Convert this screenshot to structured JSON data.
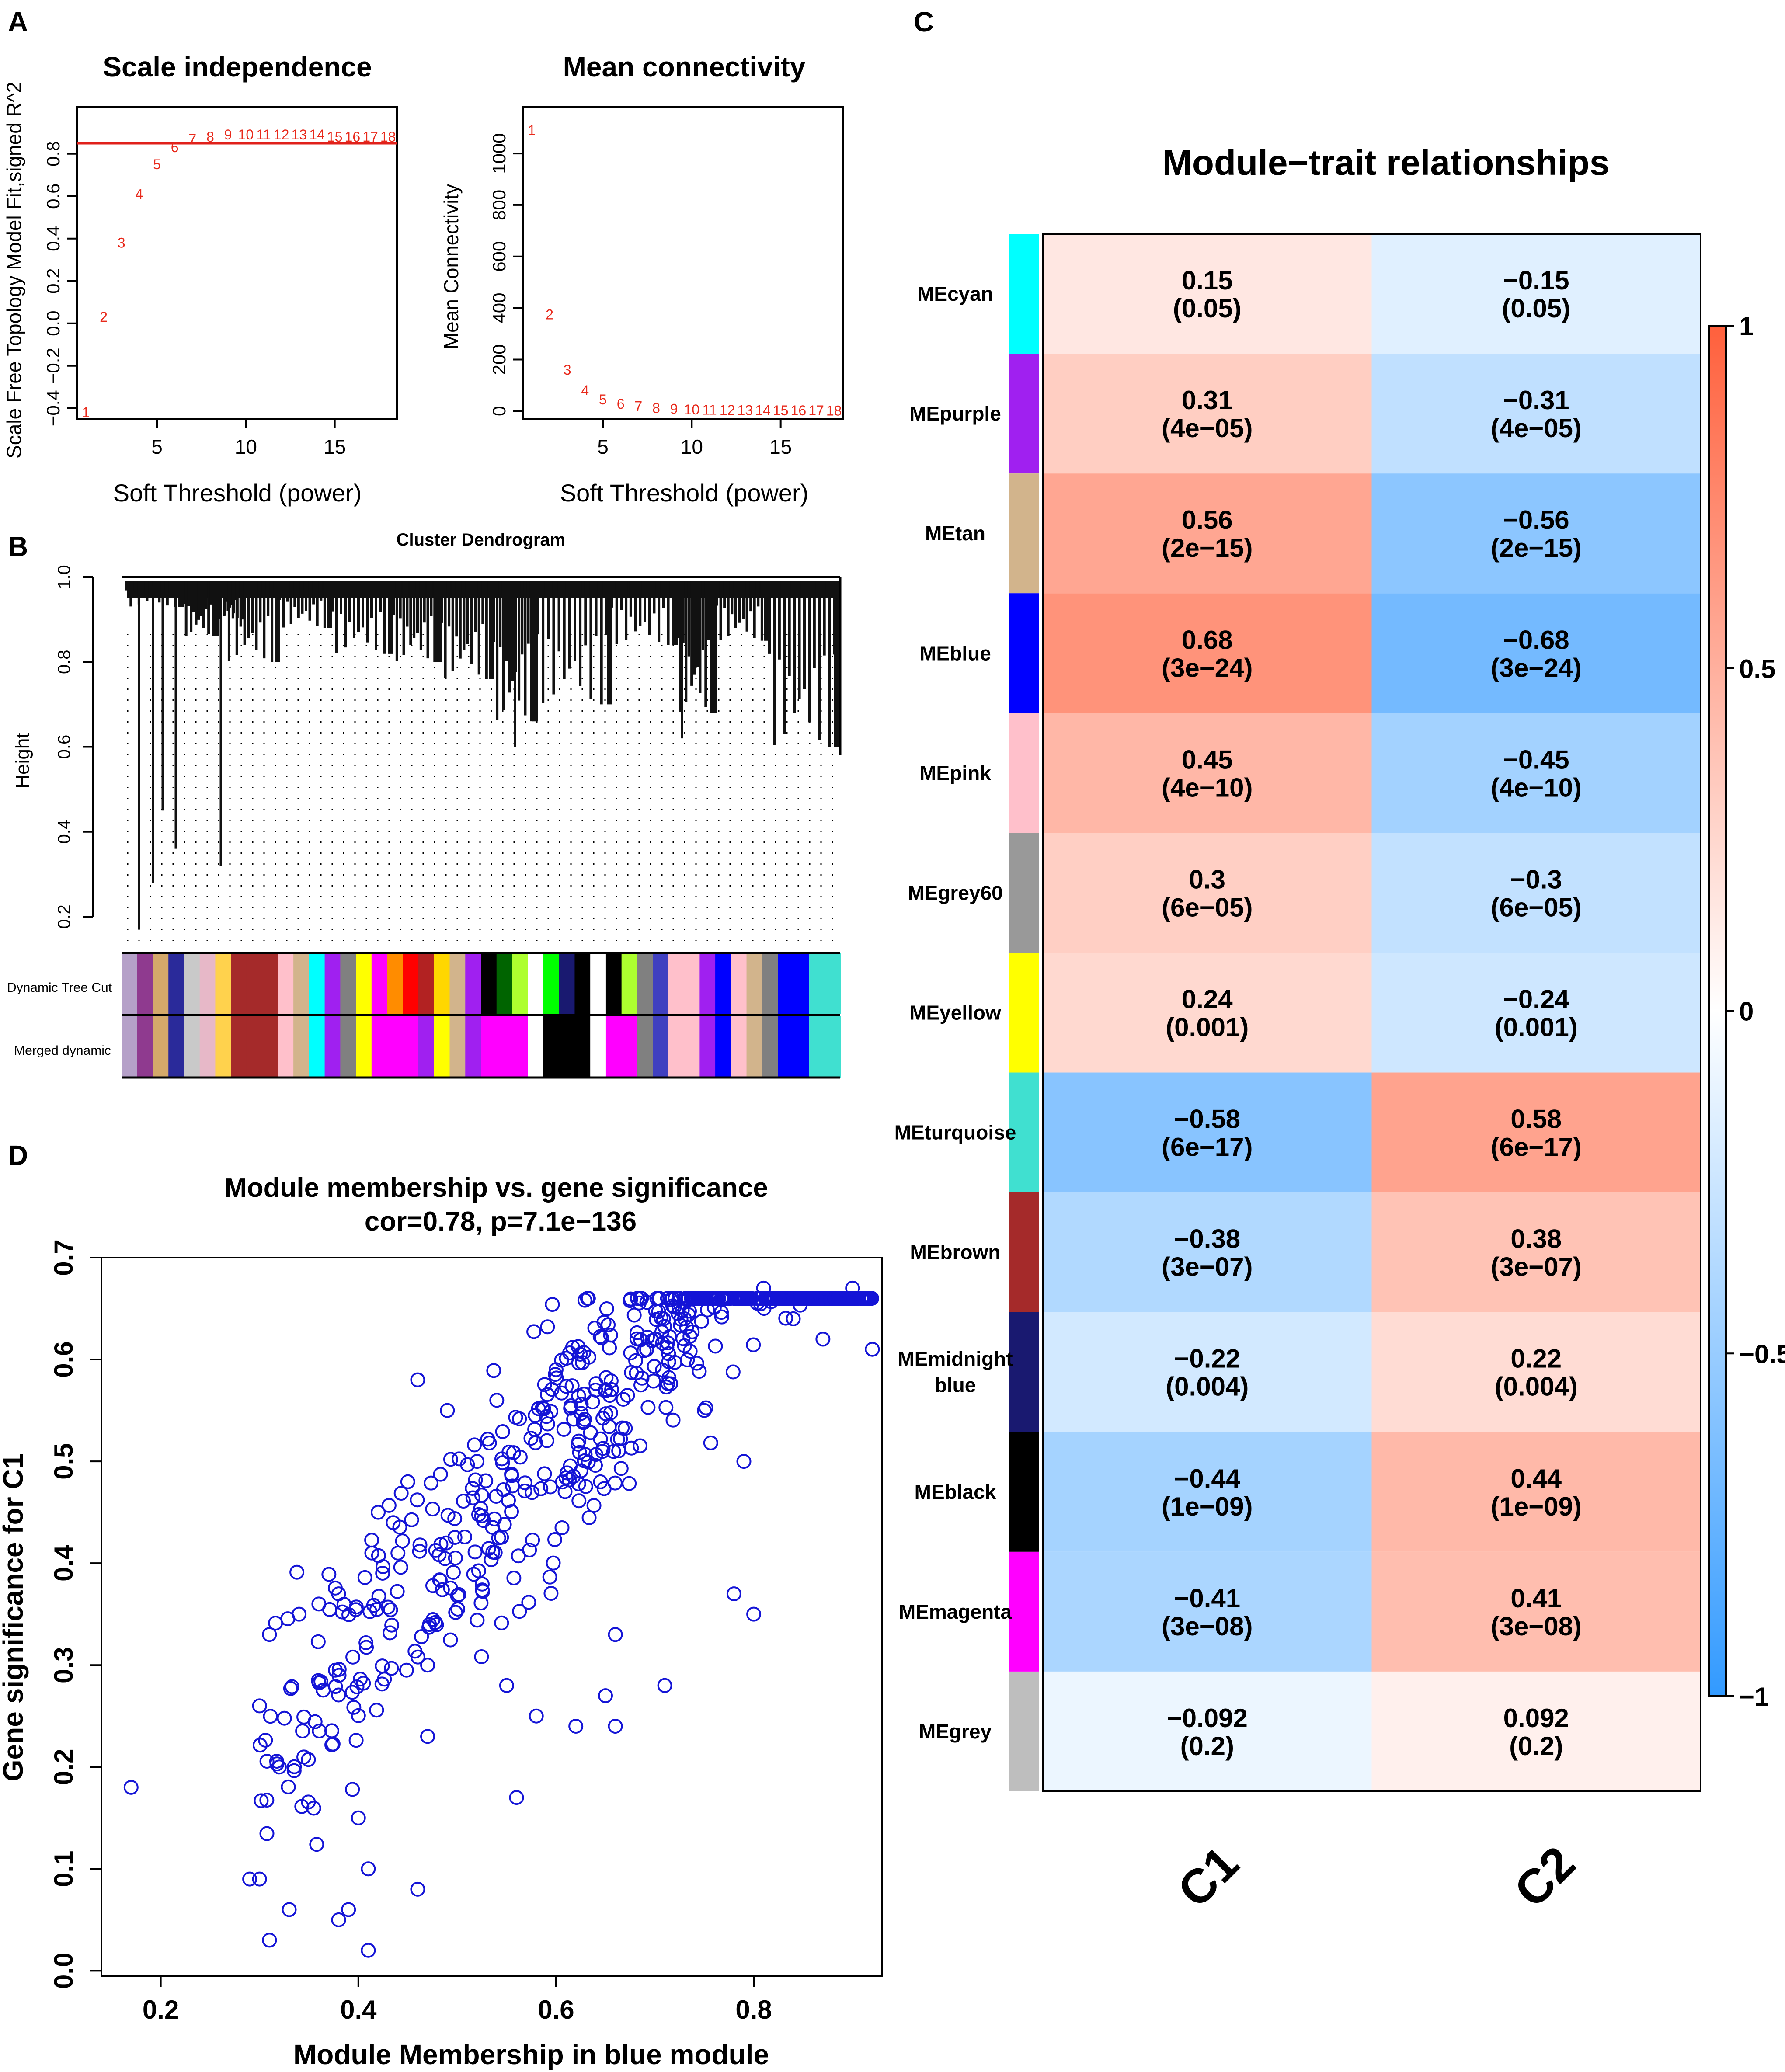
{
  "panel_labels": {
    "a": "A",
    "b": "B",
    "c": "C",
    "d": "D"
  },
  "colors": {
    "accent_red": "#e8291b",
    "scatter_blue": "#1414d6",
    "threshold_line": "#e0201a"
  },
  "chart_data": [
    {
      "id": "scale-independence",
      "type": "scatter",
      "title": "Scale independence",
      "xlabel": "Soft Threshold (power)",
      "ylabel": "Scale Free Topology Model Fit,signed R^2",
      "xlim": [
        0.5,
        18.5
      ],
      "ylim": [
        -0.45,
        1.02
      ],
      "xticks": [
        5,
        10,
        15
      ],
      "yticks": [
        -0.4,
        -0.2,
        0.0,
        0.2,
        0.4,
        0.6,
        0.8
      ],
      "ytick_labels": [
        "−0.4",
        "−0.2",
        "0.0",
        "0.2",
        "0.4",
        "0.6",
        "0.8"
      ],
      "threshold_line": 0.85,
      "x": [
        1,
        2,
        3,
        4,
        5,
        6,
        7,
        8,
        9,
        10,
        11,
        12,
        13,
        14,
        15,
        16,
        17,
        18
      ],
      "y": [
        -0.42,
        0.03,
        0.38,
        0.61,
        0.75,
        0.83,
        0.87,
        0.88,
        0.89,
        0.89,
        0.89,
        0.89,
        0.89,
        0.89,
        0.88,
        0.88,
        0.88,
        0.88
      ],
      "point_labels": [
        "1",
        "2",
        "3",
        "4",
        "5",
        "6",
        "7",
        "8",
        "9",
        "10",
        "11",
        "12",
        "13",
        "14",
        "15",
        "16",
        "17",
        "18"
      ]
    },
    {
      "id": "mean-connectivity",
      "type": "scatter",
      "title": "Mean connectivity",
      "xlabel": "Soft Threshold (power)",
      "ylabel": "Mean Connectivity",
      "xlim": [
        0.5,
        18.5
      ],
      "ylim": [
        -30,
        1180
      ],
      "xticks": [
        5,
        10,
        15
      ],
      "yticks": [
        0,
        200,
        400,
        600,
        800,
        1000
      ],
      "ytick_labels": [
        "0",
        "200",
        "400",
        "600",
        "800",
        "1000"
      ],
      "x": [
        1,
        2,
        3,
        4,
        5,
        6,
        7,
        8,
        9,
        10,
        11,
        12,
        13,
        14,
        15,
        16,
        17,
        18
      ],
      "y": [
        1090,
        375,
        160,
        80,
        45,
        28,
        18,
        12,
        8,
        6,
        5,
        4,
        3,
        3,
        2,
        2,
        2,
        1
      ],
      "point_labels": [
        "1",
        "2",
        "3",
        "4",
        "5",
        "6",
        "7",
        "8",
        "9",
        "10",
        "11",
        "12",
        "13",
        "14",
        "15",
        "16",
        "17",
        "18"
      ]
    },
    {
      "id": "cluster-dendrogram",
      "type": "dendrogram",
      "title": "Cluster Dendrogram",
      "ylabel": "Height",
      "ylim": [
        0.13,
        1.0
      ],
      "yticks": [
        0.2,
        0.4,
        0.6,
        0.8,
        1.0
      ],
      "ytick_labels": [
        "0.2",
        "0.4",
        "0.6",
        "0.8",
        "1.0"
      ],
      "row_labels": [
        "Dynamic Tree Cut",
        "Merged dynamic"
      ],
      "dynamic_colors": [
        "#b5a0c8",
        "#8f3a8f",
        "#d4a96a",
        "#2a2a9a",
        "#c9c9c9",
        "#e7b8c8",
        "#ffd24d",
        "#a52a2a",
        "#a52a2a",
        "#a52a2a",
        "#ffc0cb",
        "#d2b48c",
        "#00ffff",
        "#a020f0",
        "#808080",
        "#ffff00",
        "#ff00ff",
        "#ff8c00",
        "#ff0000",
        "#b22222",
        "#ffd700",
        "#d2b48c",
        "#a020f0",
        "#000000",
        "#006400",
        "#adff2f",
        "#ffffff",
        "#00ff00",
        "#191970",
        "#000000",
        "#ffffff",
        "#000000",
        "#adff2f",
        "#808080",
        "#4040c0",
        "#ffc0cb",
        "#ffc0cb",
        "#a020f0",
        "#0000ff",
        "#ffc0cb",
        "#d2b48c",
        "#808080",
        "#0000ff",
        "#0000ff",
        "#40e0d0",
        "#40e0d0"
      ],
      "merged_colors": [
        "#b5a0c8",
        "#8f3a8f",
        "#d4a96a",
        "#2a2a9a",
        "#c9c9c9",
        "#e7b8c8",
        "#ffd24d",
        "#a52a2a",
        "#a52a2a",
        "#a52a2a",
        "#ffc0cb",
        "#d2b48c",
        "#00ffff",
        "#a020f0",
        "#808080",
        "#ffff00",
        "#ff00ff",
        "#ff00ff",
        "#ff00ff",
        "#a020f0",
        "#ffff00",
        "#d2b48c",
        "#a020f0",
        "#ff00ff",
        "#ff00ff",
        "#ff00ff",
        "#ffffff",
        "#000000",
        "#000000",
        "#000000",
        "#ffffff",
        "#ff00ff",
        "#ff00ff",
        "#808080",
        "#4040c0",
        "#ffc0cb",
        "#ffc0cb",
        "#a020f0",
        "#0000ff",
        "#ffc0cb",
        "#d2b48c",
        "#808080",
        "#0000ff",
        "#0000ff",
        "#40e0d0",
        "#40e0d0"
      ]
    },
    {
      "id": "module-trait-heatmap",
      "type": "heatmap",
      "title": "Module−trait relationships",
      "columns": [
        "C1",
        "C2"
      ],
      "colorbar_ticks": [
        1,
        0.5,
        0,
        -0.5,
        -1
      ],
      "colorbar_labels": [
        "1",
        "0.5",
        "0",
        "−0.5",
        "−1"
      ],
      "rows": [
        {
          "module": "MEcyan",
          "color": "#00ffff",
          "c1": 0.15,
          "c1_text": "0.15",
          "c1_p": "(0.05)",
          "c2": -0.15,
          "c2_text": "−0.15",
          "c2_p": "(0.05)"
        },
        {
          "module": "MEpurple",
          "color": "#a020f0",
          "c1": 0.31,
          "c1_text": "0.31",
          "c1_p": "(4e−05)",
          "c2": -0.31,
          "c2_text": "−0.31",
          "c2_p": "(4e−05)"
        },
        {
          "module": "MEtan",
          "color": "#d2b48c",
          "c1": 0.56,
          "c1_text": "0.56",
          "c1_p": "(2e−15)",
          "c2": -0.56,
          "c2_text": "−0.56",
          "c2_p": "(2e−15)"
        },
        {
          "module": "MEblue",
          "color": "#0000ff",
          "c1": 0.68,
          "c1_text": "0.68",
          "c1_p": "(3e−24)",
          "c2": -0.68,
          "c2_text": "−0.68",
          "c2_p": "(3e−24)"
        },
        {
          "module": "MEpink",
          "color": "#ffc0cb",
          "c1": 0.45,
          "c1_text": "0.45",
          "c1_p": "(4e−10)",
          "c2": -0.45,
          "c2_text": "−0.45",
          "c2_p": "(4e−10)"
        },
        {
          "module": "MEgrey60",
          "color": "#999999",
          "c1": 0.3,
          "c1_text": "0.3",
          "c1_p": "(6e−05)",
          "c2": -0.3,
          "c2_text": "−0.3",
          "c2_p": "(6e−05)"
        },
        {
          "module": "MEyellow",
          "color": "#ffff00",
          "c1": 0.24,
          "c1_text": "0.24",
          "c1_p": "(0.001)",
          "c2": -0.24,
          "c2_text": "−0.24",
          "c2_p": "(0.001)"
        },
        {
          "module": "MEturquoise",
          "color": "#40e0d0",
          "c1": -0.58,
          "c1_text": "−0.58",
          "c1_p": "(6e−17)",
          "c2": 0.58,
          "c2_text": "0.58",
          "c2_p": "(6e−17)"
        },
        {
          "module": "MEbrown",
          "color": "#a52a2a",
          "c1": -0.38,
          "c1_text": "−0.38",
          "c1_p": "(3e−07)",
          "c2": 0.38,
          "c2_text": "0.38",
          "c2_p": "(3e−07)"
        },
        {
          "module": "MEmidnight blue",
          "label_lines": [
            "MEmidnight",
            "blue"
          ],
          "color": "#191970",
          "c1": -0.22,
          "c1_text": "−0.22",
          "c1_p": "(0.004)",
          "c2": 0.22,
          "c2_text": "0.22",
          "c2_p": "(0.004)"
        },
        {
          "module": "MEblack",
          "color": "#000000",
          "c1": -0.44,
          "c1_text": "−0.44",
          "c1_p": "(1e−09)",
          "c2": 0.44,
          "c2_text": "0.44",
          "c2_p": "(1e−09)"
        },
        {
          "module": "MEmagenta",
          "color": "#ff00ff",
          "c1": -0.41,
          "c1_text": "−0.41",
          "c1_p": "(3e−08)",
          "c2": 0.41,
          "c2_text": "0.41",
          "c2_p": "(3e−08)"
        },
        {
          "module": "MEgrey",
          "color": "#bebebe",
          "c1": -0.092,
          "c1_text": "−0.092",
          "c1_p": "(0.2)",
          "c2": 0.092,
          "c2_text": "0.092",
          "c2_p": "(0.2)"
        }
      ]
    },
    {
      "id": "mm-vs-gs",
      "type": "scatter",
      "title": "Module membership vs. gene significance",
      "subtitle": "cor=0.78, p=7.1e−136",
      "xlabel": "Module Membership in blue module",
      "ylabel": "Gene significance for  C1",
      "xlim": [
        0.14,
        0.93
      ],
      "ylim": [
        -0.005,
        0.7
      ],
      "xticks": [
        0.2,
        0.4,
        0.6,
        0.8
      ],
      "xtick_labels": [
        "0.2",
        "0.4",
        "0.6",
        "0.8"
      ],
      "yticks": [
        0.0,
        0.1,
        0.2,
        0.3,
        0.4,
        0.5,
        0.6,
        0.7
      ],
      "ytick_labels": [
        "0.0",
        "0.1",
        "0.2",
        "0.3",
        "0.4",
        "0.5",
        "0.6",
        "0.7"
      ],
      "points": [
        [
          0.17,
          0.18
        ],
        [
          0.29,
          0.09
        ],
        [
          0.3,
          0.09
        ],
        [
          0.31,
          0.03
        ],
        [
          0.41,
          0.02
        ],
        [
          0.46,
          0.58
        ],
        [
          0.46,
          0.08
        ],
        [
          0.33,
          0.06
        ],
        [
          0.31,
          0.33
        ],
        [
          0.3,
          0.26
        ],
        [
          0.32,
          0.2
        ],
        [
          0.34,
          0.35
        ],
        [
          0.36,
          0.36
        ],
        [
          0.38,
          0.37
        ],
        [
          0.38,
          0.05
        ],
        [
          0.39,
          0.06
        ],
        [
          0.4,
          0.15
        ],
        [
          0.41,
          0.1
        ],
        [
          0.42,
          0.45
        ],
        [
          0.44,
          0.41
        ],
        [
          0.45,
          0.48
        ],
        [
          0.47,
          0.3
        ],
        [
          0.47,
          0.23
        ],
        [
          0.49,
          0.55
        ],
        [
          0.52,
          0.5
        ],
        [
          0.54,
          0.56
        ],
        [
          0.55,
          0.28
        ],
        [
          0.56,
          0.17
        ],
        [
          0.58,
          0.25
        ],
        [
          0.6,
          0.59
        ],
        [
          0.62,
          0.24
        ],
        [
          0.64,
          0.57
        ],
        [
          0.65,
          0.27
        ],
        [
          0.66,
          0.24
        ],
        [
          0.66,
          0.33
        ],
        [
          0.7,
          0.62
        ],
        [
          0.71,
          0.28
        ],
        [
          0.73,
          0.64
        ],
        [
          0.75,
          0.55
        ],
        [
          0.76,
          0.66
        ],
        [
          0.78,
          0.37
        ],
        [
          0.8,
          0.35
        ],
        [
          0.81,
          0.67
        ],
        [
          0.84,
          0.64
        ],
        [
          0.87,
          0.62
        ],
        [
          0.9,
          0.67
        ],
        [
          0.92,
          0.61
        ],
        [
          0.79,
          0.5
        ]
      ]
    }
  ]
}
